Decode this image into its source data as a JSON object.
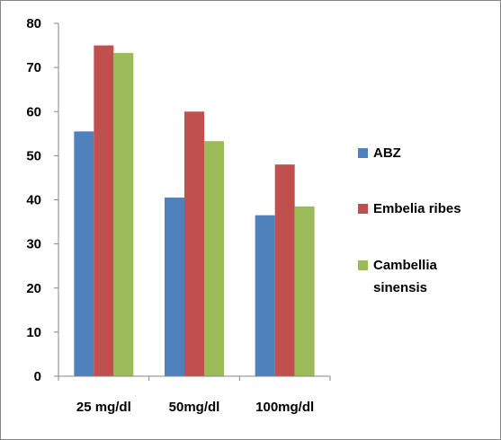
{
  "chart_data": {
    "type": "bar",
    "title": "",
    "xlabel": "",
    "ylabel": "",
    "categories": [
      "25 mg/dl",
      "50mg/dl",
      "100mg/dl"
    ],
    "series": [
      {
        "name": "ABZ",
        "values": [
          55.5,
          40.5,
          36.5
        ],
        "color": "#4F81BD"
      },
      {
        "name": "Embelia ribes",
        "values": [
          75,
          60,
          48
        ],
        "color": "#C0504D"
      },
      {
        "name": "Cambellia sinensis",
        "values": [
          73.3,
          53.3,
          38.5
        ],
        "color": "#9BBB59"
      }
    ],
    "ylim": [
      0,
      80
    ],
    "yticks": [
      0,
      10,
      20,
      30,
      40,
      50,
      60,
      70,
      80
    ],
    "grid": false,
    "legend_position": "right"
  }
}
